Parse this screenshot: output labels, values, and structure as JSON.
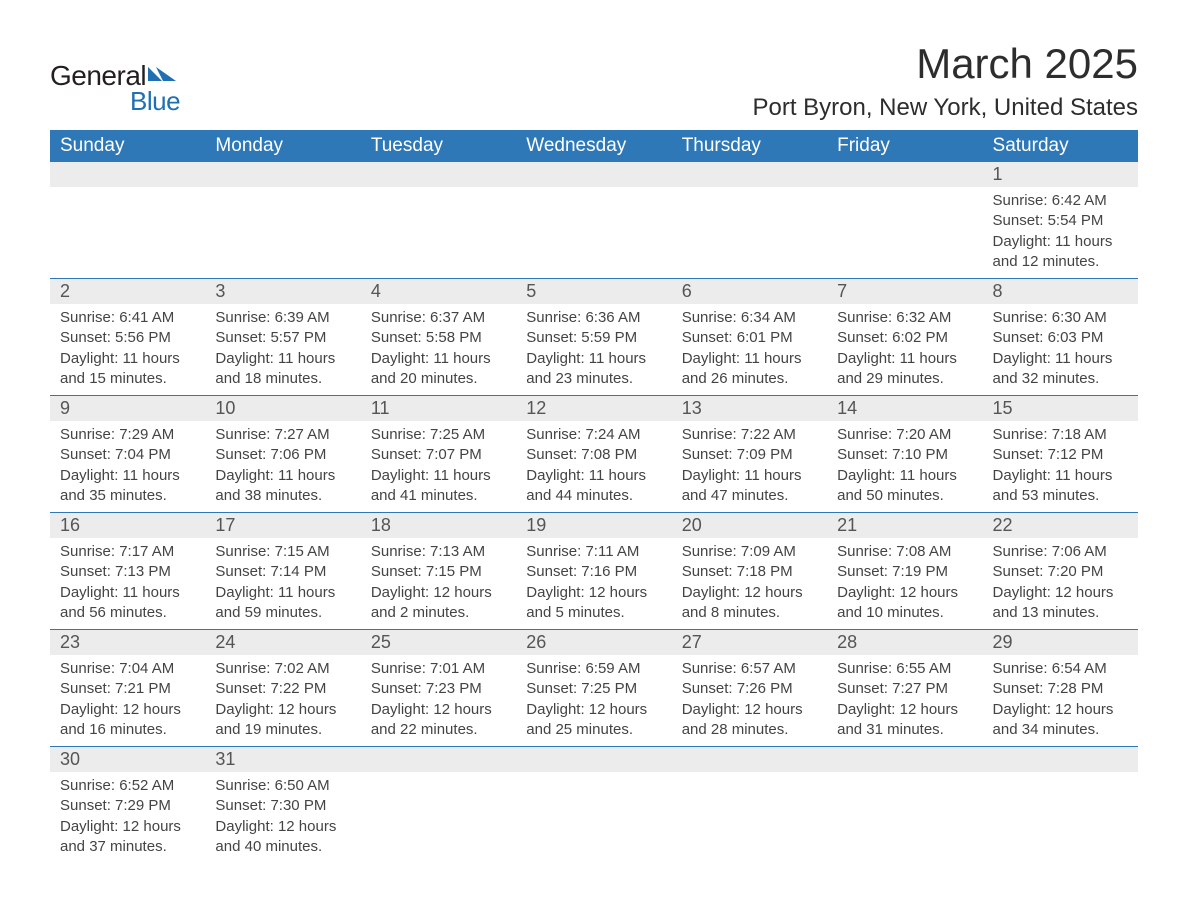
{
  "branding": {
    "word1": "General",
    "word2": "Blue",
    "icon_color": "#1f6fb2",
    "text_color_dark": "#231f20"
  },
  "title": "March 2025",
  "location": "Port Byron, New York, United States",
  "colors": {
    "header_bg": "#2f78b7",
    "header_text": "#ffffff",
    "daynum_bg": "#ececec",
    "row_border": "#2f78b7",
    "body_text": "#444444"
  },
  "weekdays": [
    "Sunday",
    "Monday",
    "Tuesday",
    "Wednesday",
    "Thursday",
    "Friday",
    "Saturday"
  ],
  "weeks": [
    {
      "nums": [
        "",
        "",
        "",
        "",
        "",
        "",
        "1"
      ],
      "details": [
        "",
        "",
        "",
        "",
        "",
        "",
        "Sunrise: 6:42 AM\nSunset: 5:54 PM\nDaylight: 11 hours and 12 minutes."
      ]
    },
    {
      "nums": [
        "2",
        "3",
        "4",
        "5",
        "6",
        "7",
        "8"
      ],
      "details": [
        "Sunrise: 6:41 AM\nSunset: 5:56 PM\nDaylight: 11 hours and 15 minutes.",
        "Sunrise: 6:39 AM\nSunset: 5:57 PM\nDaylight: 11 hours and 18 minutes.",
        "Sunrise: 6:37 AM\nSunset: 5:58 PM\nDaylight: 11 hours and 20 minutes.",
        "Sunrise: 6:36 AM\nSunset: 5:59 PM\nDaylight: 11 hours and 23 minutes.",
        "Sunrise: 6:34 AM\nSunset: 6:01 PM\nDaylight: 11 hours and 26 minutes.",
        "Sunrise: 6:32 AM\nSunset: 6:02 PM\nDaylight: 11 hours and 29 minutes.",
        "Sunrise: 6:30 AM\nSunset: 6:03 PM\nDaylight: 11 hours and 32 minutes."
      ]
    },
    {
      "nums": [
        "9",
        "10",
        "11",
        "12",
        "13",
        "14",
        "15"
      ],
      "details": [
        "Sunrise: 7:29 AM\nSunset: 7:04 PM\nDaylight: 11 hours and 35 minutes.",
        "Sunrise: 7:27 AM\nSunset: 7:06 PM\nDaylight: 11 hours and 38 minutes.",
        "Sunrise: 7:25 AM\nSunset: 7:07 PM\nDaylight: 11 hours and 41 minutes.",
        "Sunrise: 7:24 AM\nSunset: 7:08 PM\nDaylight: 11 hours and 44 minutes.",
        "Sunrise: 7:22 AM\nSunset: 7:09 PM\nDaylight: 11 hours and 47 minutes.",
        "Sunrise: 7:20 AM\nSunset: 7:10 PM\nDaylight: 11 hours and 50 minutes.",
        "Sunrise: 7:18 AM\nSunset: 7:12 PM\nDaylight: 11 hours and 53 minutes."
      ]
    },
    {
      "nums": [
        "16",
        "17",
        "18",
        "19",
        "20",
        "21",
        "22"
      ],
      "details": [
        "Sunrise: 7:17 AM\nSunset: 7:13 PM\nDaylight: 11 hours and 56 minutes.",
        "Sunrise: 7:15 AM\nSunset: 7:14 PM\nDaylight: 11 hours and 59 minutes.",
        "Sunrise: 7:13 AM\nSunset: 7:15 PM\nDaylight: 12 hours and 2 minutes.",
        "Sunrise: 7:11 AM\nSunset: 7:16 PM\nDaylight: 12 hours and 5 minutes.",
        "Sunrise: 7:09 AM\nSunset: 7:18 PM\nDaylight: 12 hours and 8 minutes.",
        "Sunrise: 7:08 AM\nSunset: 7:19 PM\nDaylight: 12 hours and 10 minutes.",
        "Sunrise: 7:06 AM\nSunset: 7:20 PM\nDaylight: 12 hours and 13 minutes."
      ]
    },
    {
      "nums": [
        "23",
        "24",
        "25",
        "26",
        "27",
        "28",
        "29"
      ],
      "details": [
        "Sunrise: 7:04 AM\nSunset: 7:21 PM\nDaylight: 12 hours and 16 minutes.",
        "Sunrise: 7:02 AM\nSunset: 7:22 PM\nDaylight: 12 hours and 19 minutes.",
        "Sunrise: 7:01 AM\nSunset: 7:23 PM\nDaylight: 12 hours and 22 minutes.",
        "Sunrise: 6:59 AM\nSunset: 7:25 PM\nDaylight: 12 hours and 25 minutes.",
        "Sunrise: 6:57 AM\nSunset: 7:26 PM\nDaylight: 12 hours and 28 minutes.",
        "Sunrise: 6:55 AM\nSunset: 7:27 PM\nDaylight: 12 hours and 31 minutes.",
        "Sunrise: 6:54 AM\nSunset: 7:28 PM\nDaylight: 12 hours and 34 minutes."
      ]
    },
    {
      "nums": [
        "30",
        "31",
        "",
        "",
        "",
        "",
        ""
      ],
      "details": [
        "Sunrise: 6:52 AM\nSunset: 7:29 PM\nDaylight: 12 hours and 37 minutes.",
        "Sunrise: 6:50 AM\nSunset: 7:30 PM\nDaylight: 12 hours and 40 minutes.",
        "",
        "",
        "",
        "",
        ""
      ]
    }
  ]
}
